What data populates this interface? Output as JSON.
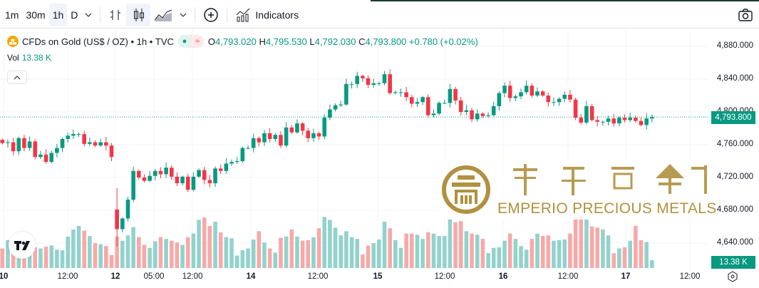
{
  "toolbar": {
    "intervals": [
      "1m",
      "30m",
      "1h",
      "D"
    ],
    "active_interval": "1h",
    "indicators_label": "Indicators"
  },
  "legend": {
    "symbol": "CFDs on Gold (US$ / OZ)",
    "interval": "1h",
    "exchange": "TVC",
    "sep": "•",
    "o_label": "O",
    "o": "4,793.020",
    "h_label": "H",
    "h": "4,795.530",
    "l_label": "L",
    "l": "4,792.030",
    "c_label": "C",
    "c": "4,793.800",
    "change": "+0.780 (+0.02%)"
  },
  "volume": {
    "label": "Vol",
    "value": "13.38 K"
  },
  "price_axis": {
    "labels": [
      "4,880.000",
      "4,840.000",
      "4,800.000",
      "4,760.000",
      "4,720.000",
      "4,680.000",
      "4,640.000"
    ],
    "current_price": "4,793.800",
    "current_volume": "13.38 K"
  },
  "time_axis": {
    "labels": [
      {
        "t": "10",
        "day": true
      },
      {
        "t": "12:00"
      },
      {
        "t": "12",
        "day": true
      },
      {
        "t": "05:00"
      },
      {
        "t": "12:00"
      },
      {
        "t": "14",
        "day": true
      },
      {
        "t": "12:00"
      },
      {
        "t": "15",
        "day": true
      },
      {
        "t": "12:00"
      },
      {
        "t": "16",
        "day": true
      },
      {
        "t": "12:00"
      },
      {
        "t": "17",
        "day": true
      },
      {
        "t": "12:00"
      }
    ]
  },
  "logo": {
    "chinese": "帝鋒貴金屬",
    "english": "EMPERIO PRECIOUS METALS",
    "gold": "#b0913f"
  },
  "colors": {
    "up": "#089981",
    "down": "#f23645",
    "up_vol": "#92d2cc",
    "down_vol": "#f7a9a7"
  },
  "chart_data": {
    "type": "candlestick",
    "symbol": "XAUUSD",
    "ylim": [
      4620,
      4900
    ],
    "first_open": 4766,
    "close": [
      4762,
      4763,
      4752,
      4768,
      4756,
      4764,
      4745,
      4748,
      4739,
      4750,
      4756,
      4767,
      4771,
      4773,
      4773,
      4761,
      4763,
      4759,
      4763,
      4759,
      4745,
      4657,
      4670,
      4693,
      4728,
      4720,
      4716,
      4722,
      4728,
      4724,
      4732,
      4721,
      4713,
      4721,
      4705,
      4721,
      4729,
      4717,
      4713,
      4731,
      4728,
      4737,
      4739,
      4740,
      4756,
      4756,
      4768,
      4763,
      4774,
      4767,
      4772,
      4759,
      4781,
      4775,
      4786,
      4777,
      4768,
      4774,
      4770,
      4793,
      4803,
      4808,
      4809,
      4834,
      4834,
      4844,
      4841,
      4833,
      4835,
      4835,
      4846,
      4823,
      4824,
      4824,
      4818,
      4810,
      4812,
      4818,
      4796,
      4798,
      4811,
      4811,
      4828,
      4814,
      4800,
      4802,
      4791,
      4798,
      4795,
      4796,
      4807,
      4823,
      4832,
      4817,
      4819,
      4824,
      4832,
      4820,
      4825,
      4820,
      4812,
      4812,
      4816,
      4821,
      4815,
      4793,
      4787,
      4807,
      4790,
      4788,
      4788,
      4792,
      4786,
      4793,
      4790,
      4793,
      4789,
      4784,
      4792,
      4793.8
    ],
    "opens_override": {
      "21": 4681
    },
    "volume_k": [
      33,
      47,
      31,
      23,
      35,
      41,
      35,
      33,
      36,
      38,
      31,
      30,
      53,
      65,
      71,
      63,
      54,
      42,
      40,
      37,
      22,
      53,
      46,
      55,
      69,
      52,
      39,
      34,
      45,
      52,
      49,
      46,
      43,
      39,
      52,
      58,
      81,
      85,
      71,
      78,
      60,
      52,
      50,
      21,
      30,
      33,
      48,
      62,
      43,
      33,
      26,
      51,
      53,
      65,
      53,
      46,
      47,
      52,
      67,
      86,
      81,
      68,
      55,
      62,
      52,
      49,
      23,
      38,
      42,
      48,
      78,
      67,
      47,
      34,
      58,
      58,
      56,
      49,
      60,
      58,
      54,
      54,
      84,
      77,
      79,
      62,
      58,
      56,
      49,
      25,
      34,
      35,
      46,
      58,
      49,
      37,
      31,
      49,
      58,
      54,
      55,
      46,
      47,
      48,
      58,
      86,
      89,
      84,
      70,
      68,
      65,
      55,
      25,
      33,
      35,
      46,
      71,
      47,
      44,
      13.38
    ]
  }
}
